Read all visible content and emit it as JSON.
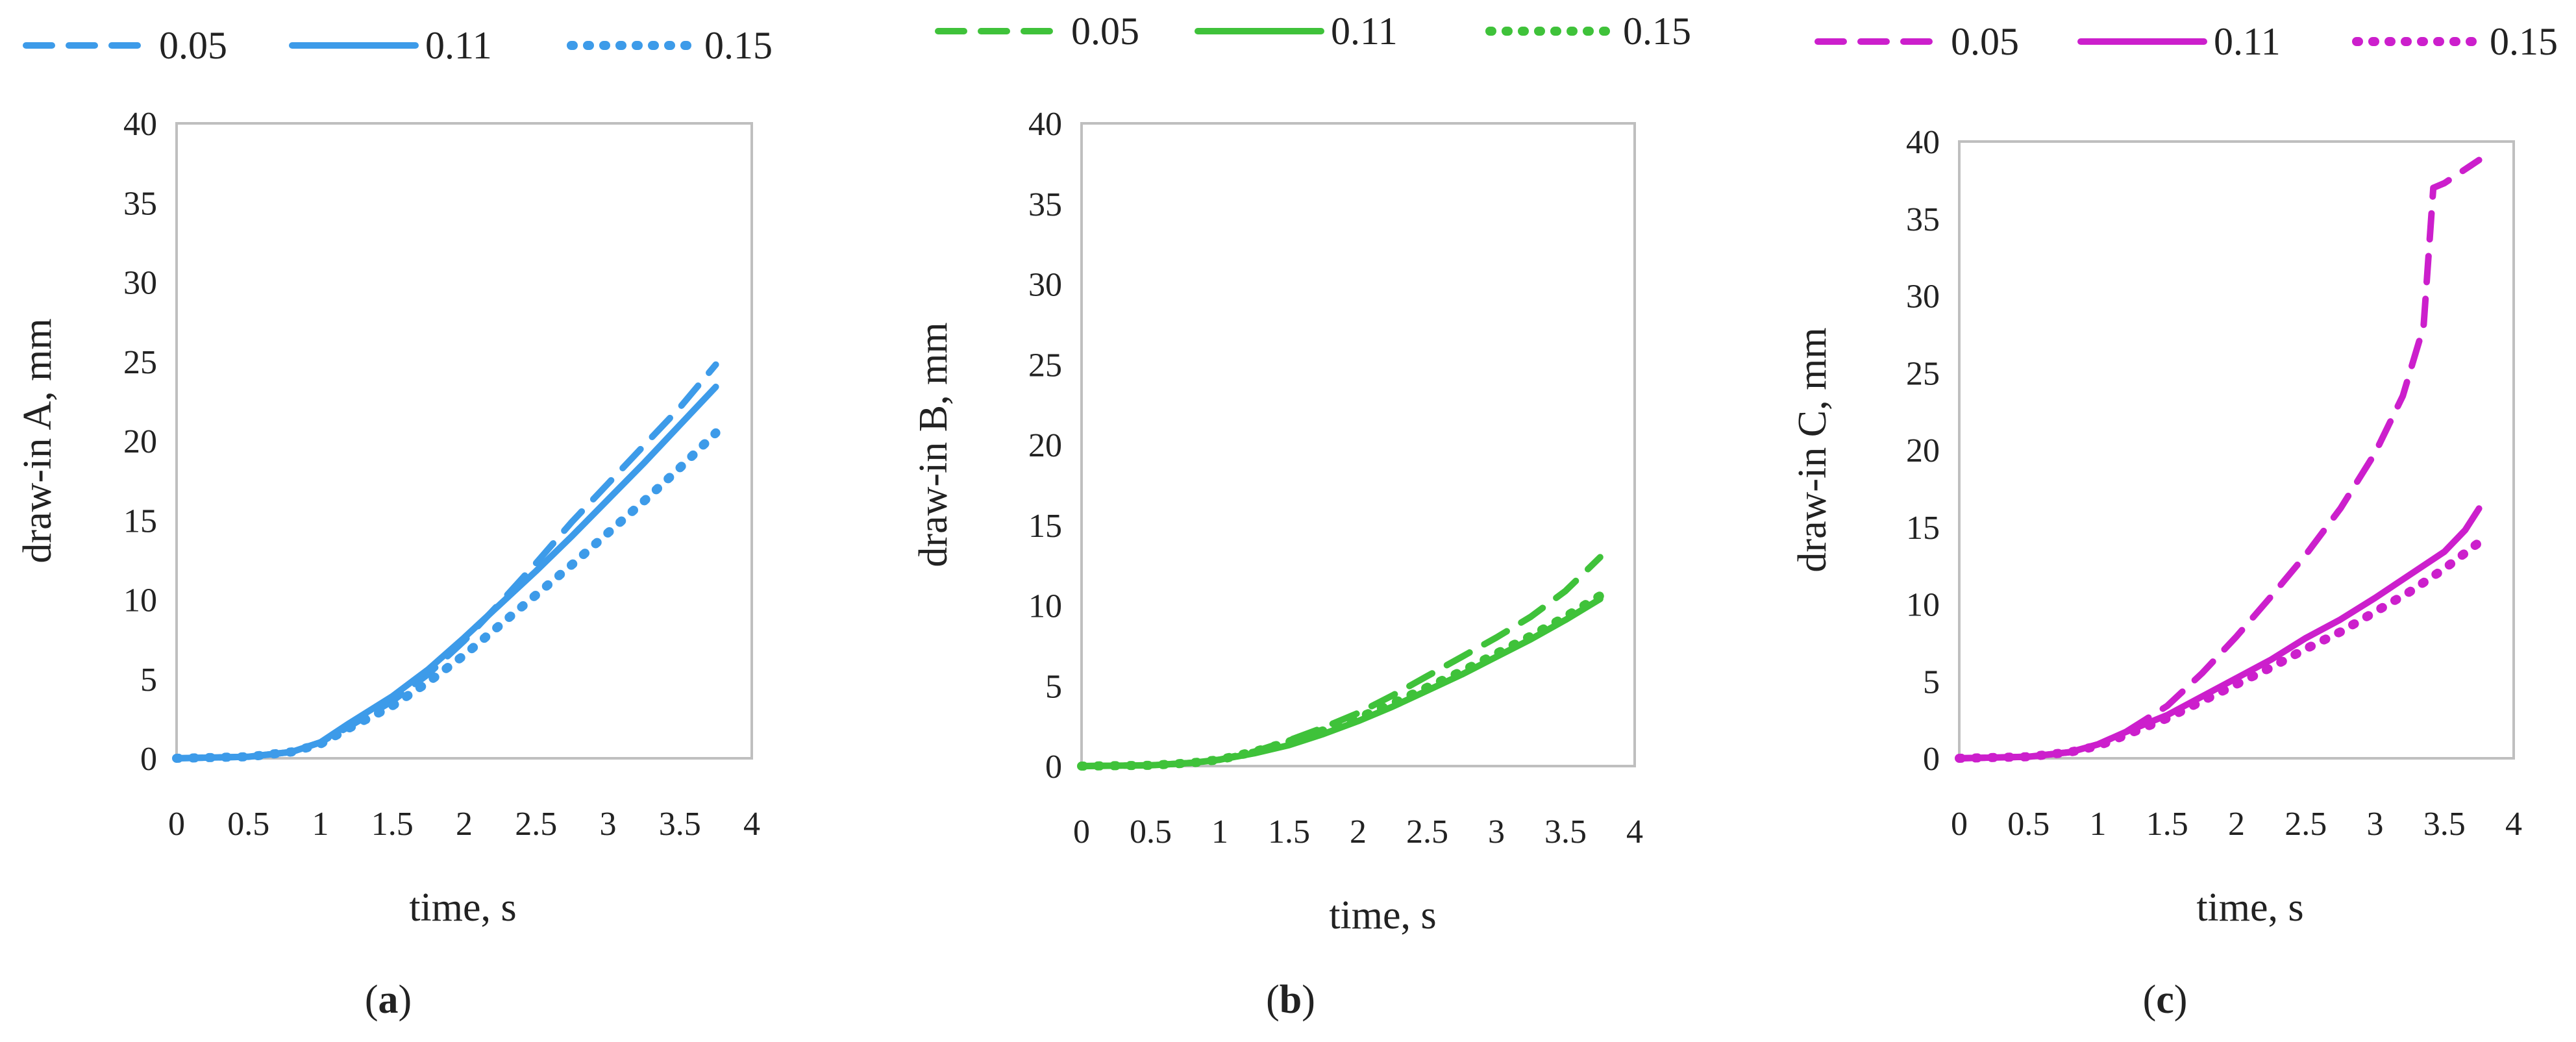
{
  "chart_data": [
    {
      "type": "line",
      "caption": "(a)",
      "caption_letter": "a",
      "color": "#3d9be9",
      "xlabel": "time, s",
      "ylabel": "draw-in A, mm",
      "xlim": [
        0,
        4
      ],
      "ylim": [
        0,
        40
      ],
      "xticks": [
        "0",
        "0.5",
        "1",
        "1.5",
        "2",
        "2.5",
        "3",
        "3.5",
        "4"
      ],
      "yticks": [
        "0",
        "5",
        "10",
        "15",
        "20",
        "25",
        "30",
        "35",
        "40"
      ],
      "legend_position": "top",
      "series": [
        {
          "name": "0.05",
          "style": "dashed",
          "x": [
            0,
            0.5,
            0.8,
            1.0,
            1.2,
            1.5,
            1.75,
            2.0,
            2.25,
            2.5,
            2.75,
            3.0,
            3.25,
            3.5,
            3.75
          ],
          "y": [
            0,
            0.1,
            0.4,
            1.0,
            2.0,
            3.6,
            5.3,
            7.4,
            9.8,
            12.3,
            14.9,
            17.3,
            19.7,
            22.1,
            24.8
          ]
        },
        {
          "name": "0.11",
          "style": "solid",
          "x": [
            0,
            0.5,
            0.8,
            1.0,
            1.2,
            1.5,
            1.75,
            2.0,
            2.25,
            2.5,
            2.75,
            3.0,
            3.25,
            3.5,
            3.75
          ],
          "y": [
            0,
            0.1,
            0.4,
            1.0,
            2.2,
            3.9,
            5.6,
            7.6,
            9.7,
            11.8,
            14.0,
            16.3,
            18.6,
            21.0,
            23.4
          ]
        },
        {
          "name": "0.15",
          "style": "dotted",
          "x": [
            0,
            0.5,
            0.8,
            1.0,
            1.2,
            1.5,
            1.75,
            2.0,
            2.25,
            2.5,
            2.75,
            3.0,
            3.25,
            3.5,
            3.75
          ],
          "y": [
            0,
            0.1,
            0.4,
            0.9,
            1.9,
            3.3,
            4.8,
            6.5,
            8.4,
            10.3,
            12.2,
            14.2,
            16.2,
            18.3,
            20.5
          ]
        }
      ]
    },
    {
      "type": "line",
      "caption": "(b)",
      "caption_letter": "b",
      "color": "#3fc23a",
      "xlabel": "time, s",
      "ylabel": "draw-in B, mm",
      "xlim": [
        0,
        4
      ],
      "ylim": [
        0,
        40
      ],
      "xticks": [
        "0",
        "0.5",
        "1",
        "1.5",
        "2",
        "2.5",
        "3",
        "3.5",
        "4"
      ],
      "yticks": [
        "0",
        "5",
        "10",
        "15",
        "20",
        "25",
        "30",
        "35",
        "40"
      ],
      "legend_position": "top",
      "series": [
        {
          "name": "0.05",
          "style": "dashed",
          "x": [
            0,
            0.5,
            0.8,
            1.0,
            1.25,
            1.5,
            1.75,
            2.0,
            2.25,
            2.5,
            2.75,
            3.0,
            3.25,
            3.5,
            3.75
          ],
          "y": [
            0,
            0.05,
            0.2,
            0.4,
            0.9,
            1.6,
            2.4,
            3.3,
            4.4,
            5.6,
            6.8,
            8.0,
            9.3,
            10.9,
            13.0
          ]
        },
        {
          "name": "0.11",
          "style": "solid",
          "x": [
            0,
            0.5,
            0.8,
            1.0,
            1.25,
            1.5,
            1.75,
            2.0,
            2.25,
            2.5,
            2.75,
            3.0,
            3.25,
            3.5,
            3.75
          ],
          "y": [
            0,
            0.05,
            0.2,
            0.4,
            0.8,
            1.3,
            2.0,
            2.8,
            3.7,
            4.7,
            5.7,
            6.8,
            7.9,
            9.1,
            10.4
          ]
        },
        {
          "name": "0.15",
          "style": "dotted",
          "x": [
            0,
            0.5,
            0.8,
            1.0,
            1.25,
            1.5,
            1.75,
            2.0,
            2.25,
            2.5,
            2.75,
            3.0,
            3.25,
            3.5,
            3.75
          ],
          "y": [
            0,
            0.05,
            0.2,
            0.4,
            0.9,
            1.5,
            2.2,
            3.0,
            3.9,
            4.9,
            5.9,
            7.0,
            8.1,
            9.3,
            10.6
          ]
        }
      ]
    },
    {
      "type": "line",
      "caption": "(c)",
      "caption_letter": "c",
      "color": "#cc1fcc",
      "xlabel": "time, s",
      "ylabel": "draw-in C, mm",
      "xlim": [
        0,
        4
      ],
      "ylim": [
        0,
        40
      ],
      "xticks": [
        "0",
        "0.5",
        "1",
        "1.5",
        "2",
        "2.5",
        "3",
        "3.5",
        "4"
      ],
      "yticks": [
        "0",
        "5",
        "10",
        "15",
        "20",
        "25",
        "30",
        "35",
        "40"
      ],
      "legend_position": "top",
      "series": [
        {
          "name": "0.05",
          "style": "dashed",
          "x": [
            0,
            0.5,
            0.8,
            1.0,
            1.2,
            1.5,
            1.75,
            2.0,
            2.25,
            2.5,
            2.75,
            3.0,
            3.2,
            3.35,
            3.42,
            3.5,
            3.75
          ],
          "y": [
            0,
            0.1,
            0.4,
            0.9,
            1.7,
            3.4,
            5.5,
            7.9,
            10.5,
            13.2,
            16.2,
            19.8,
            23.5,
            28.0,
            37.0,
            37.3,
            38.8
          ]
        },
        {
          "name": "0.11",
          "style": "solid",
          "x": [
            0,
            0.5,
            0.8,
            1.0,
            1.2,
            1.5,
            1.75,
            2.0,
            2.25,
            2.5,
            2.75,
            3.0,
            3.25,
            3.5,
            3.65,
            3.75
          ],
          "y": [
            0,
            0.1,
            0.4,
            0.9,
            1.7,
            2.8,
            4.0,
            5.2,
            6.4,
            7.8,
            9.0,
            10.4,
            11.9,
            13.4,
            14.8,
            16.2
          ]
        },
        {
          "name": "0.15",
          "style": "dotted",
          "x": [
            0,
            0.5,
            0.8,
            1.0,
            1.2,
            1.5,
            1.75,
            2.0,
            2.25,
            2.5,
            2.75,
            3.0,
            3.25,
            3.5,
            3.75
          ],
          "y": [
            0,
            0.1,
            0.4,
            0.8,
            1.5,
            2.6,
            3.7,
            4.8,
            5.9,
            7.1,
            8.2,
            9.5,
            10.8,
            12.3,
            14.0
          ]
        }
      ]
    }
  ]
}
